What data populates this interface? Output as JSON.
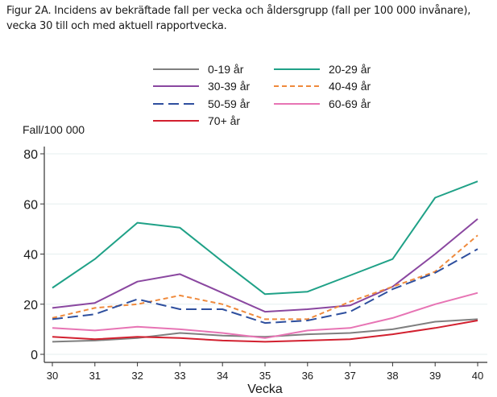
{
  "caption": {
    "line1": "Figur 2A. Incidens av bekräftade fall per vecka och åldersgrupp (fall per 100 000 invånare),",
    "line2": "vecka 30 till och med aktuell rapportvecka."
  },
  "chart_data": {
    "type": "line",
    "title": "Figur 2A. Incidens av bekräftade fall per vecka och åldersgrupp (fall per 100 000 invånare), vecka 30 till och med aktuell rapportvecka.",
    "xlabel": "Vecka",
    "ylabel": "Fall/100 000",
    "x": [
      30,
      31,
      32,
      33,
      34,
      35,
      36,
      37,
      38,
      39,
      40
    ],
    "x_tick_labels": [
      "30",
      "31",
      "32",
      "33",
      "34",
      "35",
      "36",
      "37",
      "38",
      "39",
      "40"
    ],
    "y_ticks": [
      0,
      20,
      40,
      60,
      80
    ],
    "y_tick_labels": [
      "0",
      "20",
      "40",
      "60",
      "80"
    ],
    "ylim": [
      0,
      80
    ],
    "grid": true,
    "legend_placement": "top",
    "series": [
      {
        "name": "0-19 år",
        "color": "#7f7f7f",
        "dash": "solid",
        "values": [
          5,
          5.5,
          6.5,
          8.5,
          7.5,
          7,
          8,
          8.5,
          10,
          13,
          14
        ]
      },
      {
        "name": "20-29 år",
        "color": "#1fa187",
        "dash": "solid",
        "values": [
          26.5,
          38,
          52.5,
          50.5,
          37,
          24,
          25,
          31.5,
          38,
          62.5,
          69
        ]
      },
      {
        "name": "30-39 år",
        "color": "#8a47a0",
        "dash": "solid",
        "values": [
          18.5,
          20.5,
          29,
          32,
          24.5,
          17,
          18,
          19.5,
          27,
          40,
          54
        ]
      },
      {
        "name": "40-49 år",
        "color": "#ef8a3c",
        "dash": "short",
        "values": [
          14.5,
          18.5,
          20,
          23.5,
          20,
          14,
          14,
          21,
          27,
          33,
          47.5
        ]
      },
      {
        "name": "50-59 år",
        "color": "#2e4f9e",
        "dash": "long",
        "values": [
          14,
          16,
          22,
          18,
          18,
          12.5,
          13.5,
          17,
          26,
          32.5,
          42
        ]
      },
      {
        "name": "60-69 år",
        "color": "#e774b4",
        "dash": "solid",
        "values": [
          10.5,
          9.5,
          11,
          10,
          8.5,
          6.5,
          9.5,
          10.5,
          14.5,
          20,
          24.5
        ]
      },
      {
        "name": "70+ år",
        "color": "#d2202f",
        "dash": "solid",
        "values": [
          7,
          6,
          7,
          6.5,
          5.5,
          5,
          5.5,
          6,
          8,
          10.5,
          13.5
        ]
      }
    ]
  }
}
